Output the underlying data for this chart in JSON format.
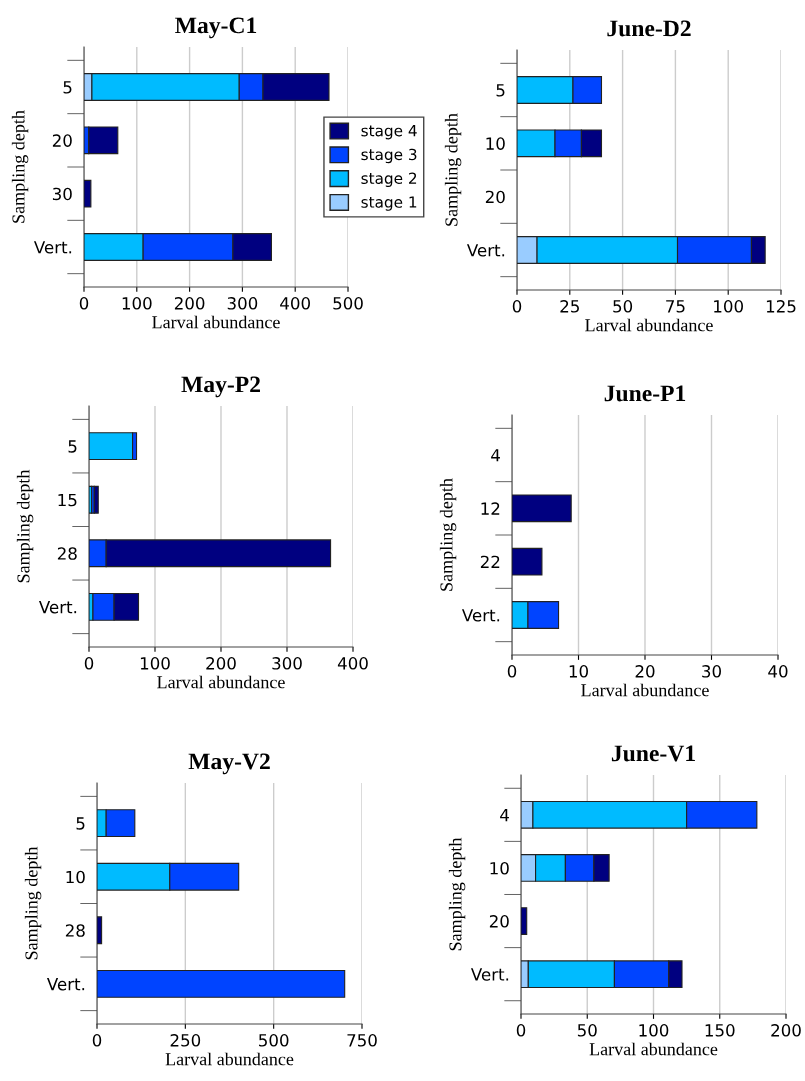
{
  "chart_data": [
    {
      "type": "bar",
      "orientation": "horizontal",
      "stacked": true,
      "title": "May-C1",
      "xlabel": "Larval abundance",
      "ylabel": "Sampling depth",
      "categories": [
        "5",
        "20",
        "30",
        "Vert."
      ],
      "xlim": [
        0,
        500
      ],
      "xticks": [
        0,
        100,
        200,
        300,
        400,
        500
      ],
      "grid": "x",
      "legend": "right",
      "series": [
        {
          "name": "stage 1",
          "color": "#99ccff",
          "values": [
            15,
            null,
            null,
            null
          ]
        },
        {
          "name": "stage 2",
          "color": "#00bbff",
          "values": [
            279,
            null,
            null,
            112
          ]
        },
        {
          "name": "stage 3",
          "color": "#0044ff",
          "values": [
            45,
            9,
            null,
            170
          ]
        },
        {
          "name": "stage 4",
          "color": "#000080",
          "values": [
            125,
            55,
            13,
            73
          ]
        }
      ]
    },
    {
      "type": "bar",
      "orientation": "horizontal",
      "stacked": true,
      "title": "June-D2",
      "xlabel": "Larval abundance",
      "ylabel": "Sampling depth",
      "categories": [
        "5",
        "10",
        "20",
        "Vert."
      ],
      "xlim": [
        0,
        125
      ],
      "xticks": [
        0,
        25,
        50,
        75,
        100,
        125
      ],
      "grid": "x",
      "series": [
        {
          "color": "#99ccff",
          "values": [
            null,
            null,
            null,
            9.5
          ]
        },
        {
          "color": "#00bbff",
          "values": [
            26.5,
            18,
            null,
            66.5
          ]
        },
        {
          "color": "#0044ff",
          "values": [
            13.5,
            12.5,
            null,
            35
          ]
        },
        {
          "color": "#000080",
          "values": [
            null,
            9.5,
            null,
            6.5
          ]
        }
      ]
    },
    {
      "type": "bar",
      "orientation": "horizontal",
      "stacked": true,
      "title": "May-P2",
      "xlabel": "Larval abundance",
      "ylabel": "Sampling depth",
      "categories": [
        "5",
        "15",
        "28",
        "Vert."
      ],
      "xlim": [
        0,
        400
      ],
      "xticks": [
        0,
        100,
        200,
        300,
        400
      ],
      "grid": "x",
      "series": [
        {
          "color": "#00bbff",
          "values": [
            66,
            4,
            null,
            6
          ]
        },
        {
          "color": "#0044ff",
          "values": [
            6,
            4,
            26,
            32
          ]
        },
        {
          "color": "#000080",
          "values": [
            null,
            6,
            340,
            37
          ]
        }
      ]
    },
    {
      "type": "bar",
      "orientation": "horizontal",
      "stacked": true,
      "title": "June-P1",
      "xlabel": "Larval abundance",
      "ylabel": "Sampling depth",
      "categories": [
        "4",
        "12",
        "22",
        "Vert."
      ],
      "xlim": [
        0,
        40
      ],
      "xticks": [
        0,
        10,
        20,
        30,
        40
      ],
      "grid": "x",
      "series": [
        {
          "color": "#00bbff",
          "values": [
            null,
            null,
            null,
            2.4
          ]
        },
        {
          "color": "#0044ff",
          "values": [
            null,
            null,
            null,
            4.6
          ]
        },
        {
          "color": "#000080",
          "values": [
            null,
            8.9,
            4.5,
            null
          ]
        }
      ]
    },
    {
      "type": "bar",
      "orientation": "horizontal",
      "stacked": true,
      "title": "May-V2",
      "xlabel": "Larval abundance",
      "ylabel": "Sampling depth",
      "categories": [
        "5",
        "10",
        "28",
        "Vert."
      ],
      "xlim": [
        0,
        750
      ],
      "xticks": [
        0,
        250,
        500,
        750
      ],
      "grid": "x",
      "series": [
        {
          "color": "#00bbff",
          "values": [
            26,
            206,
            null,
            null
          ]
        },
        {
          "color": "#0044ff",
          "values": [
            81,
            195,
            null,
            701
          ]
        },
        {
          "color": "#000080",
          "values": [
            null,
            null,
            13,
            null
          ]
        }
      ]
    },
    {
      "type": "bar",
      "orientation": "horizontal",
      "stacked": true,
      "title": "June-V1",
      "xlabel": "Larval abundance",
      "ylabel": "Sampling depth",
      "categories": [
        "4",
        "10",
        "20",
        "Vert."
      ],
      "xlim": [
        0,
        200
      ],
      "xticks": [
        0,
        50,
        100,
        150,
        200
      ],
      "grid": "x",
      "series": [
        {
          "color": "#99ccff",
          "values": [
            9,
            11,
            null,
            5.5
          ]
        },
        {
          "color": "#00bbff",
          "values": [
            116,
            22.5,
            null,
            65
          ]
        },
        {
          "color": "#0044ff",
          "values": [
            53,
            21.5,
            null,
            41
          ]
        },
        {
          "color": "#000080",
          "values": [
            null,
            11.5,
            4.3,
            10
          ]
        }
      ]
    }
  ]
}
